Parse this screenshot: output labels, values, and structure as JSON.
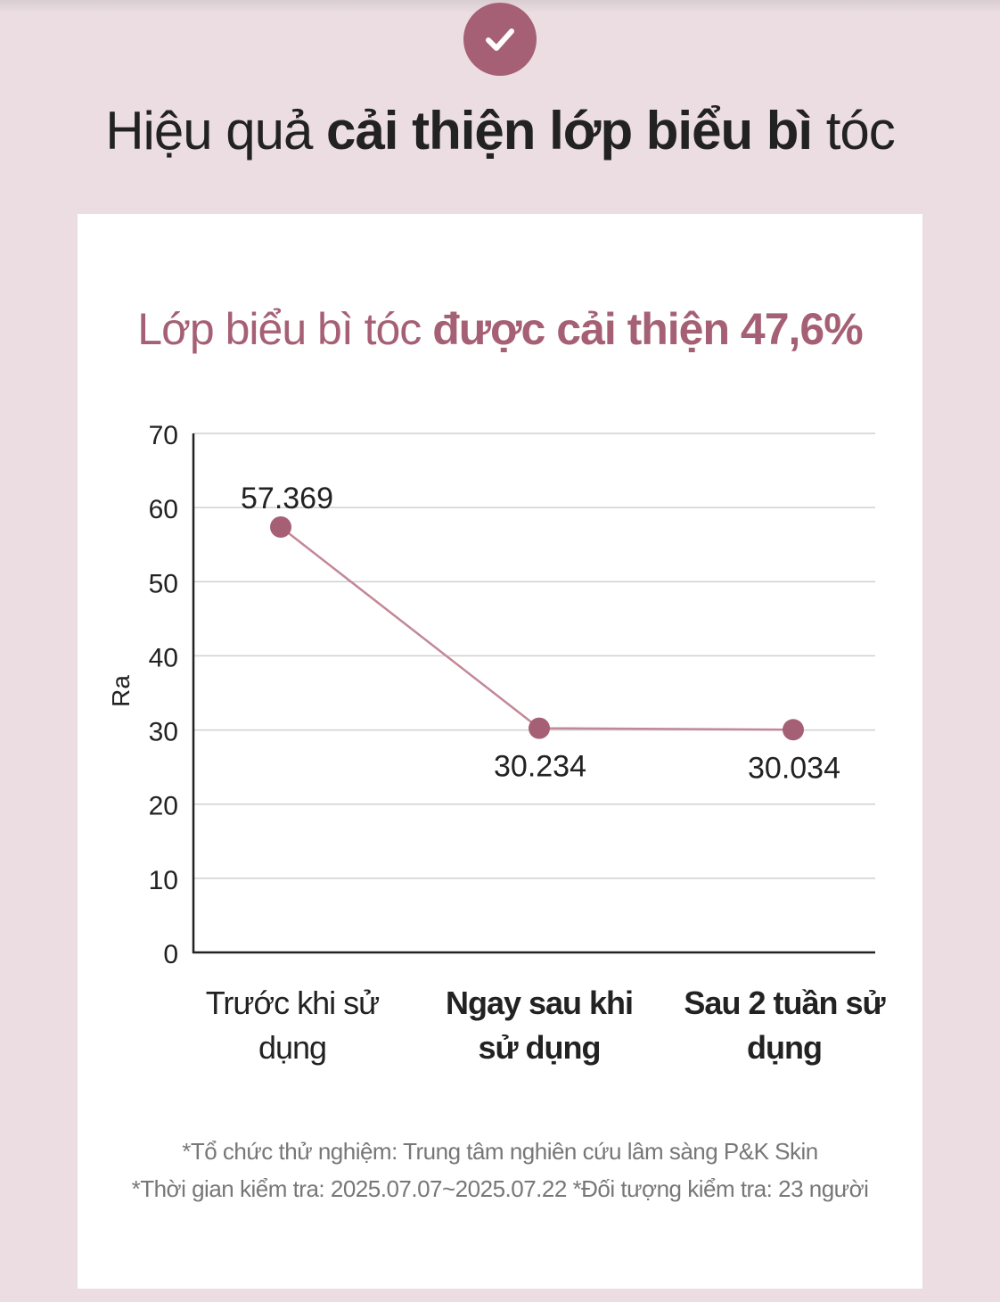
{
  "header": {
    "title_normal_1": "Hiệu quả ",
    "title_bold": "cải thiện lớp biểu bì",
    "title_normal_2": " tóc",
    "badge_icon": "check-icon"
  },
  "card": {
    "subtitle_normal": "Lớp biểu bì tóc ",
    "subtitle_bold": "được cải thiện 47,6%",
    "notes": [
      "*Tổ chức thử nghiệm: Trung tâm nghiên cứu lâm sàng P&K Skin",
      "*Thời gian kiểm tra: 2025.07.07~2025.07.22 *Đối tượng kiểm tra: 23 người"
    ]
  },
  "colors": {
    "page_bg": "#ebdde1",
    "accent": "#a66075",
    "line": "#c28898",
    "text": "#222222",
    "grid": "#d0d0d0"
  },
  "chart_data": {
    "type": "line",
    "categories": [
      "Trước khi sử dụng",
      "Ngay sau khi sử dụng",
      "Sau 2 tuần sử dụng"
    ],
    "category_lines": [
      [
        "Trước khi sử",
        "dụng"
      ],
      [
        "Ngay sau khi",
        "sử dụng"
      ],
      [
        "Sau 2 tuần sử",
        "dụng"
      ]
    ],
    "category_bold": [
      false,
      true,
      true
    ],
    "values": [
      57.369,
      30.234,
      30.034
    ],
    "data_labels": [
      "57.369",
      "30.234",
      "30.034"
    ],
    "label_placement": [
      "above",
      "below",
      "below"
    ],
    "ylabel": "Ra",
    "ylim": [
      0,
      70
    ],
    "yticks": [
      0,
      10,
      20,
      30,
      40,
      50,
      60,
      70
    ],
    "grid": true,
    "legend": "none"
  }
}
